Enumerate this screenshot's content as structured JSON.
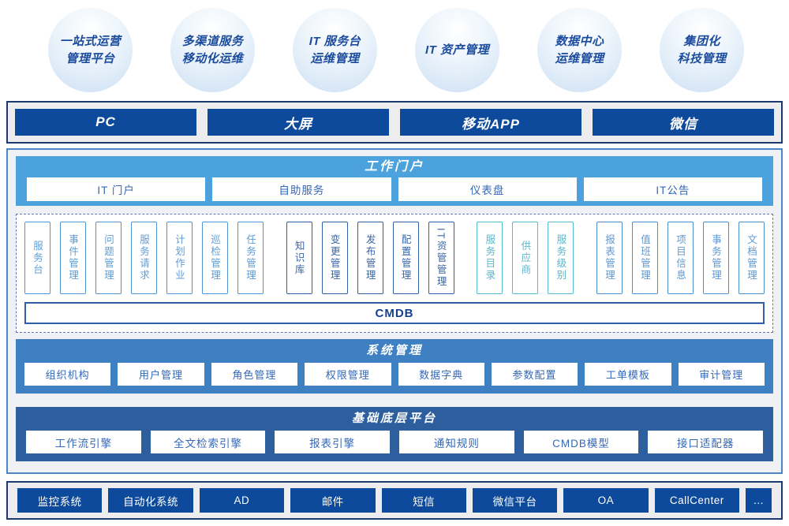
{
  "bubbles": [
    {
      "label": "一站式运营\n管理平台"
    },
    {
      "label": "多渠道服务\n移动化运维"
    },
    {
      "label": "IT 服务台\n运维管理"
    },
    {
      "label": "IT 资产管理"
    },
    {
      "label": "数据中心\n运维管理"
    },
    {
      "label": "集团化\n科技管理"
    }
  ],
  "channels": [
    "PC",
    "大屏",
    "移动APP",
    "微信"
  ],
  "portal": {
    "title": "工作门户",
    "items": [
      "IT 门户",
      "自助服务",
      "仪表盘",
      "IT公告"
    ]
  },
  "modules": {
    "groups": [
      {
        "color": "#4f94d6",
        "items": [
          "服务台",
          "事件管理",
          "问题管理",
          "服务请求",
          "计划作业",
          "巡检管理",
          "任务管理"
        ]
      },
      {
        "color": "#2d5fa9",
        "items": [
          "知识库",
          "变更管理",
          "发布管理",
          "配置管理",
          "IT资管管理"
        ]
      },
      {
        "color": "#52bccf",
        "items": [
          "服务目录",
          "供应商",
          "服务级别"
        ]
      },
      {
        "color": "#4a8fd0",
        "items": [
          "报表管理",
          "值班管理",
          "项目信息",
          "事务管理",
          "文档管理"
        ]
      }
    ],
    "cmdb": "CMDB"
  },
  "system": {
    "title": "系统管理",
    "items": [
      "组织机构",
      "用户管理",
      "角色管理",
      "权限管理",
      "数据字典",
      "参数配置",
      "工单模板",
      "审计管理"
    ]
  },
  "platform": {
    "title": "基础底层平台",
    "items": [
      "工作流引擎",
      "全文检索引擎",
      "报表引擎",
      "通知规则",
      "CMDB模型",
      "接口适配器"
    ]
  },
  "integrations": [
    "监控系统",
    "自动化系统",
    "AD",
    "邮件",
    "短信",
    "微信平台",
    "OA",
    "CallCenter",
    "…"
  ],
  "colors": {
    "navy_bar": "#0e4a9b",
    "navy_border": "#1d3a6e",
    "portal_blue": "#4ba2dc",
    "system_blue": "#3f80c2",
    "platform_blue": "#2d5f9f",
    "main_border": "#4c86c6",
    "dashed_border": "#6372b4",
    "box_text_blue": "#3468b8",
    "bubble_text": "#1b4b9d",
    "group1": "#4f94d6",
    "group2": "#2d5fa9",
    "group3": "#52bccf",
    "group4": "#4a8fd0"
  }
}
